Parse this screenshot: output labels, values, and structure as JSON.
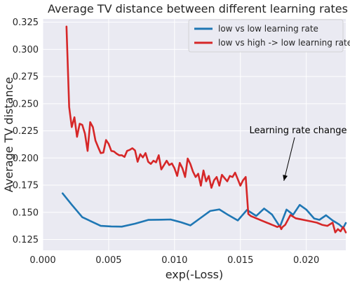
{
  "chart_data": {
    "type": "line",
    "title": "Average TV distance between different learning rates",
    "xlabel": "exp(-Loss)",
    "ylabel": "Average TV distance",
    "xlim": [
      0.0,
      0.023
    ],
    "ylim": [
      0.115,
      0.328
    ],
    "x_ticks": [
      0.0,
      0.005,
      0.01,
      0.015,
      0.02
    ],
    "x_tick_labels": [
      "0.000",
      "0.005",
      "0.010",
      "0.015",
      "0.020"
    ],
    "y_ticks": [
      0.125,
      0.15,
      0.175,
      0.2,
      0.225,
      0.25,
      0.275,
      0.3,
      0.325
    ],
    "y_tick_labels": [
      "0.125",
      "0.150",
      "0.175",
      "0.200",
      "0.225",
      "0.250",
      "0.275",
      "0.300",
      "0.325"
    ],
    "grid": true,
    "legend_position": "top-right",
    "series": [
      {
        "name": "low vs low learning rate",
        "color": "#1f77b4",
        "x": [
          0.0015,
          0.0022,
          0.003,
          0.0037,
          0.0044,
          0.0052,
          0.006,
          0.007,
          0.008,
          0.009,
          0.0097,
          0.0105,
          0.0112,
          0.012,
          0.0127,
          0.0134,
          0.0141,
          0.0148,
          0.0155,
          0.0162,
          0.0168,
          0.0174,
          0.018,
          0.0185,
          0.019,
          0.0195,
          0.02,
          0.0206,
          0.021,
          0.0215,
          0.022,
          0.0225,
          0.0228,
          0.023
        ],
        "y": [
          0.1675,
          0.157,
          0.1455,
          0.1415,
          0.1375,
          0.137,
          0.1368,
          0.1395,
          0.143,
          0.1432,
          0.1434,
          0.1408,
          0.138,
          0.145,
          0.1512,
          0.1527,
          0.1474,
          0.1425,
          0.1522,
          0.1467,
          0.1535,
          0.148,
          0.1367,
          0.1525,
          0.1478,
          0.1568,
          0.1525,
          0.1443,
          0.1431,
          0.1473,
          0.1425,
          0.1388,
          0.1355,
          0.1402
        ]
      },
      {
        "name": "low vs high -> low learning rate",
        "color": "#d62728",
        "x": [
          0.0018,
          0.002,
          0.0022,
          0.0024,
          0.0026,
          0.0028,
          0.003,
          0.0032,
          0.0034,
          0.0036,
          0.0038,
          0.004,
          0.0042,
          0.0044,
          0.0046,
          0.0048,
          0.005,
          0.0052,
          0.0054,
          0.0056,
          0.0058,
          0.006,
          0.0062,
          0.0064,
          0.0066,
          0.0068,
          0.007,
          0.0072,
          0.0074,
          0.0076,
          0.0078,
          0.008,
          0.0082,
          0.0084,
          0.0086,
          0.0088,
          0.009,
          0.0092,
          0.0094,
          0.0096,
          0.0098,
          0.01,
          0.0102,
          0.0104,
          0.0106,
          0.0108,
          0.011,
          0.0112,
          0.0114,
          0.0116,
          0.0118,
          0.012,
          0.0122,
          0.0124,
          0.0126,
          0.0128,
          0.013,
          0.0132,
          0.0134,
          0.0136,
          0.0138,
          0.014,
          0.0142,
          0.0144,
          0.0146,
          0.0148,
          0.015,
          0.0152,
          0.0154,
          0.0156,
          0.0158,
          0.016,
          0.0162,
          0.0164,
          0.0166,
          0.0168,
          0.017,
          0.0172,
          0.0174,
          0.0176,
          0.0178,
          0.018,
          0.0181,
          0.0182,
          0.0184,
          0.0188,
          0.0192,
          0.0196,
          0.02,
          0.0204,
          0.0208,
          0.0212,
          0.0216,
          0.022,
          0.0222,
          0.0224,
          0.0226,
          0.0228,
          0.023
        ],
        "y": [
          0.321,
          0.247,
          0.2285,
          0.2375,
          0.2195,
          0.2315,
          0.2305,
          0.2225,
          0.2065,
          0.233,
          0.2285,
          0.216,
          0.21,
          0.2045,
          0.205,
          0.2165,
          0.213,
          0.2065,
          0.206,
          0.204,
          0.2025,
          0.2025,
          0.201,
          0.2065,
          0.2075,
          0.209,
          0.207,
          0.1965,
          0.2035,
          0.2005,
          0.2045,
          0.1965,
          0.1945,
          0.1975,
          0.196,
          0.2025,
          0.1895,
          0.1935,
          0.1975,
          0.1935,
          0.195,
          0.1905,
          0.1835,
          0.1955,
          0.1905,
          0.1825,
          0.1995,
          0.1945,
          0.1875,
          0.1825,
          0.1855,
          0.1745,
          0.1885,
          0.1785,
          0.1835,
          0.1725,
          0.1795,
          0.1825,
          0.1745,
          0.1845,
          0.1815,
          0.1785,
          0.1835,
          0.1825,
          0.1865,
          0.1805,
          0.1745,
          0.1795,
          0.1825,
          0.1485,
          0.1465,
          0.1455,
          0.1445,
          0.1435,
          0.1425,
          0.1415,
          0.1405,
          0.1395,
          0.1385,
          0.1375,
          0.1365,
          0.1375,
          0.1345,
          0.1365,
          0.1385,
          0.1475,
          0.1445,
          0.1435,
          0.1425,
          0.1415,
          0.1405,
          0.1385,
          0.1375,
          0.1405,
          0.1315,
          0.1345,
          0.1325,
          0.1365,
          0.1315
        ]
      }
    ],
    "annotations": [
      {
        "text": "Learning rate change",
        "x": 0.0183,
        "y": 0.179
      }
    ]
  }
}
